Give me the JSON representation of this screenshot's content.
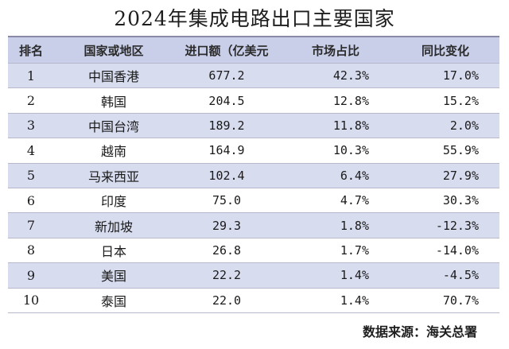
{
  "title": "2024年集成电路出口主要国家",
  "headers": {
    "rank": "排名",
    "name": "国家或地区",
    "value": "进口额（亿美元",
    "share": "市场占比",
    "change": "同比变化"
  },
  "rows": [
    {
      "rank": "1",
      "name": "中国香港",
      "value": "677.2",
      "share": "42.3%",
      "change": "17.0%"
    },
    {
      "rank": "2",
      "name": "韩国",
      "value": "204.5",
      "share": "12.8%",
      "change": "15.2%"
    },
    {
      "rank": "3",
      "name": "中国台湾",
      "value": "189.2",
      "share": "11.8%",
      "change": "2.0%"
    },
    {
      "rank": "4",
      "name": "越南",
      "value": "164.9",
      "share": "10.3%",
      "change": "55.9%"
    },
    {
      "rank": "5",
      "name": "马来西亚",
      "value": "102.4",
      "share": "6.4%",
      "change": "27.9%"
    },
    {
      "rank": "6",
      "name": "印度",
      "value": "75.0",
      "share": "4.7%",
      "change": "30.3%"
    },
    {
      "rank": "7",
      "name": "新加坡",
      "value": "29.3",
      "share": "1.8%",
      "change": "-12.3%"
    },
    {
      "rank": "8",
      "name": "日本",
      "value": "26.8",
      "share": "1.7%",
      "change": "-14.0%"
    },
    {
      "rank": "9",
      "name": "美国",
      "value": "22.2",
      "share": "1.4%",
      "change": "-4.5%"
    },
    {
      "rank": "10",
      "name": "泰国",
      "value": "22.0",
      "share": "1.4%",
      "change": "70.7%"
    }
  ],
  "source": "数据来源：海关总署"
}
